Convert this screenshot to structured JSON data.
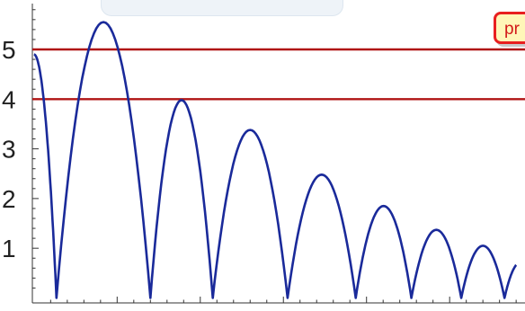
{
  "tag": {
    "label": "pr"
  },
  "colors": {
    "curve": "#1a2a9a",
    "hline": "#b01414",
    "axis": "#333333"
  },
  "chart_data": {
    "type": "line",
    "title": "",
    "xlabel": "",
    "ylabel": "",
    "ylim": [
      -0.1,
      5.85
    ],
    "yticks": [
      1,
      2,
      3,
      4,
      5
    ],
    "yticklabels": [
      "1",
      "2",
      "3",
      "4",
      "5"
    ],
    "hlines": [
      5,
      4
    ],
    "bounces": [
      {
        "start": 0.0,
        "end": 0.27,
        "peak": 4.9,
        "half": true
      },
      {
        "start": 0.27,
        "end": 1.4,
        "peak": 5.55
      },
      {
        "start": 1.4,
        "end": 2.15,
        "peak": 3.98
      },
      {
        "start": 2.15,
        "end": 3.05,
        "peak": 3.38
      },
      {
        "start": 3.05,
        "end": 3.87,
        "peak": 2.48
      },
      {
        "start": 3.87,
        "end": 4.54,
        "peak": 1.85
      },
      {
        "start": 4.54,
        "end": 5.14,
        "peak": 1.37
      },
      {
        "start": 5.14,
        "end": 5.66,
        "peak": 1.05
      },
      {
        "start": 5.66,
        "end": 6.05,
        "peak": 0.72,
        "partial_to": 5.8
      }
    ],
    "xlim": [
      -0.02,
      5.82
    ]
  }
}
